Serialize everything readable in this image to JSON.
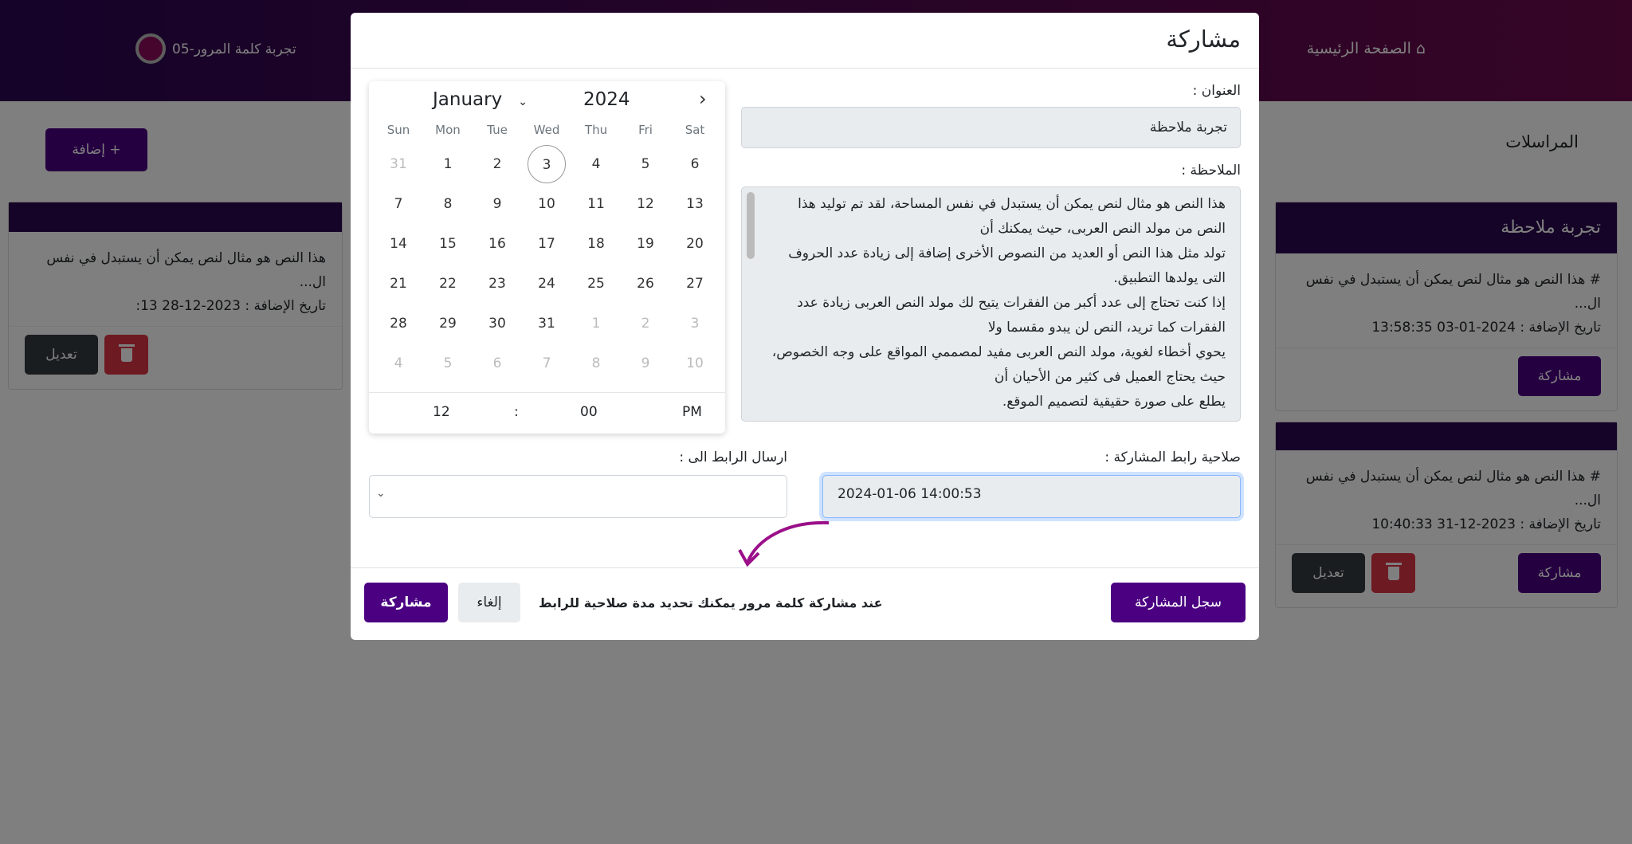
{
  "nav": {
    "home": "الصفحة الرئيسية",
    "brand": "تجربة كلمة المرور-05",
    "home_icon": "home-icon",
    "logo_icon": "logo-icon"
  },
  "page": {
    "title": "المراسلات",
    "add_button": "إضافة +"
  },
  "cards": [
    {
      "title": "تجربة ملاحظة",
      "text": "# هذا النص هو مثال لنص يمكن أن يستبدل في نفس ال...",
      "date": "تاريخ الإضافة : 2024-01-03 13:58:35",
      "share": "مشاركة"
    },
    {
      "title": "",
      "text": "# هذا النص هو مثال لنص يمكن أن يستبدل في نفس ال...",
      "date": "تاريخ الإضافة : 2023-12-31 10:40:33",
      "share": "مشاركة",
      "edit": "تعديل"
    },
    {
      "title": "",
      "text": "هذا النص هو مثال لنص يمكن أن يستبدل في نفس ال...",
      "date": "تاريخ الإضافة : 2023-12-28 13:",
      "edit": "تعديل"
    }
  ],
  "modal": {
    "title": "مشاركة",
    "title_label": "العنوان :",
    "title_value": "تجربة ملاحظة",
    "note_label": "الملاحظة :",
    "note_lines": [
      "هذا النص هو مثال لنص يمكن أن يستبدل في نفس المساحة، لقد تم توليد هذا النص من مولد النص العربى، حيث يمكنك أن",
      "تولد مثل هذا النص أو العديد من النصوص الأخرى إضافة إلى زيادة عدد الحروف التى يولدها التطبيق.",
      "إذا كنت تحتاج إلى عدد أكبر من الفقرات يتيح لك مولد النص العربى زيادة عدد الفقرات كما تريد، النص لن يبدو مقسما ولا",
      "يحوي أخطاء لغوية، مولد النص العربى مفيد لمصممي المواقع على وجه الخصوص، حيث يحتاج العميل فى كثير من الأحيان أن",
      "يطلع على صورة حقيقية لتصميم الموقع."
    ],
    "expiry_label": "صلاحية رابط المشاركة :",
    "expiry_value": "2024-01-06 14:00:53",
    "send_label": "ارسال الرابط الى :",
    "send_value": "",
    "hint": "عند مشاركة كلمة مرور يمكنك تحديد مدة صلاحية للرابط",
    "share_button": "مشاركة",
    "cancel_button": "إلغاء",
    "log_button": "سجل المشاركة",
    "arrow_color": "#9b0f8a"
  },
  "calendar": {
    "month": "January",
    "year": "2024",
    "weekdays": [
      "Sun",
      "Mon",
      "Tue",
      "Wed",
      "Thu",
      "Fri",
      "Sat"
    ],
    "weeks": [
      [
        "31",
        "1",
        "2",
        "3",
        "4",
        "5",
        "6"
      ],
      [
        "7",
        "8",
        "9",
        "10",
        "11",
        "12",
        "13"
      ],
      [
        "14",
        "15",
        "16",
        "17",
        "18",
        "19",
        "20"
      ],
      [
        "21",
        "22",
        "23",
        "24",
        "25",
        "26",
        "27"
      ],
      [
        "28",
        "29",
        "30",
        "31",
        "1",
        "2",
        "3"
      ],
      [
        "4",
        "5",
        "6",
        "7",
        "8",
        "9",
        "10"
      ]
    ],
    "today": "3",
    "hour": "12",
    "sep": ":",
    "minute": "00",
    "ampm": "PM"
  },
  "colors": {
    "primary": "#4b0082",
    "danger": "#dc3545",
    "dark": "#343a40"
  }
}
